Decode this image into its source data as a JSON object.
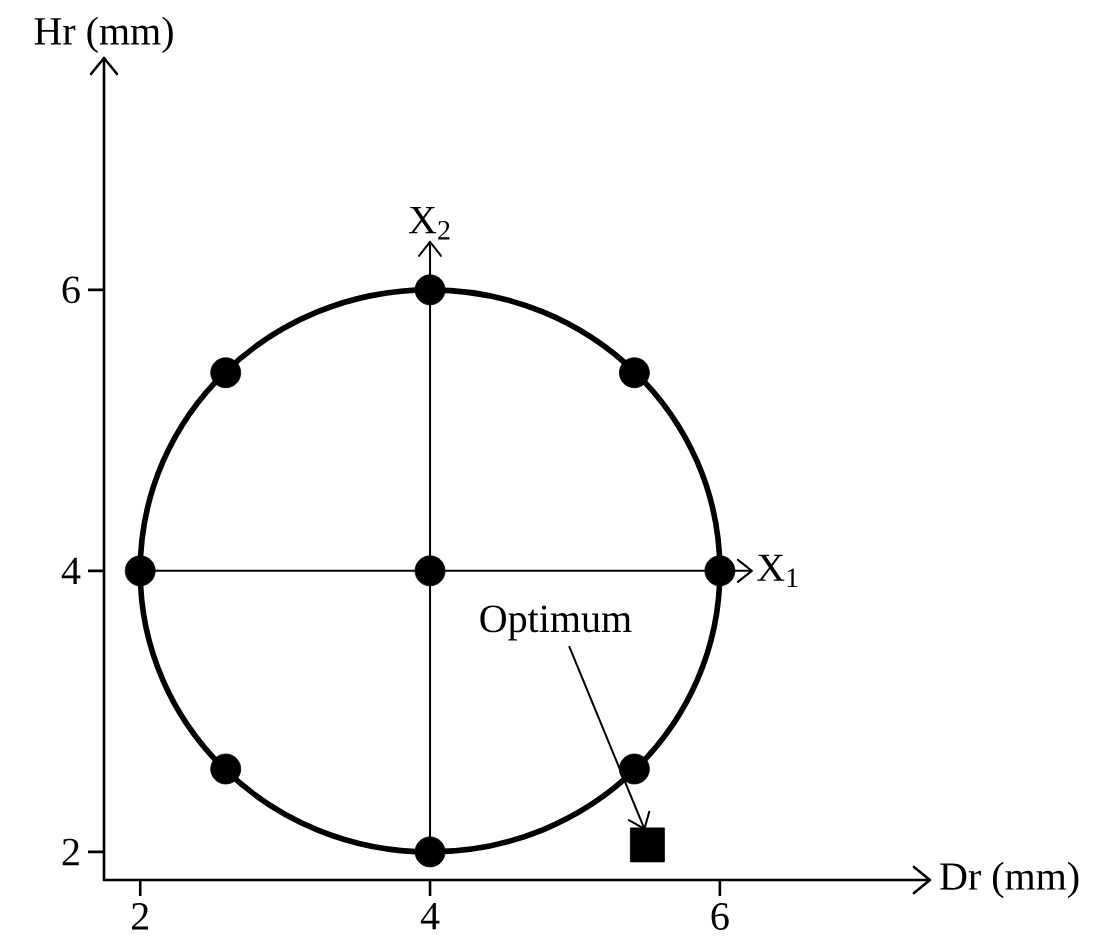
{
  "chart_data": {
    "type": "scatter",
    "xlabel": "Dr (mm)",
    "ylabel": "Hr (mm)",
    "xlim": [
      1.75,
      7.45
    ],
    "ylim": [
      1.8,
      7.65
    ],
    "xticks": [
      2,
      4,
      6
    ],
    "yticks": [
      2,
      4,
      6
    ],
    "series": [
      {
        "color": "#000000",
        "marker": "circle",
        "x": [
          2,
          2.59,
          2.59,
          4,
          4,
          4,
          5.41,
          5.41,
          6
        ],
        "values": [
          4,
          2.59,
          5.41,
          2,
          4,
          6,
          2.59,
          5.41,
          4
        ]
      },
      {
        "color": "#000000",
        "marker": "square",
        "x": [
          5.5
        ],
        "values": [
          2.05
        ]
      }
    ],
    "ref_lines": [
      {
        "axis": "y",
        "value": 4,
        "label": "X$_{1}$"
      },
      {
        "axis": "x",
        "value": 4,
        "label": "X$_{2}$"
      }
    ],
    "annotations": [
      {
        "text": "Optimum",
        "x": 5.5,
        "y": 2.05
      }
    ]
  }
}
